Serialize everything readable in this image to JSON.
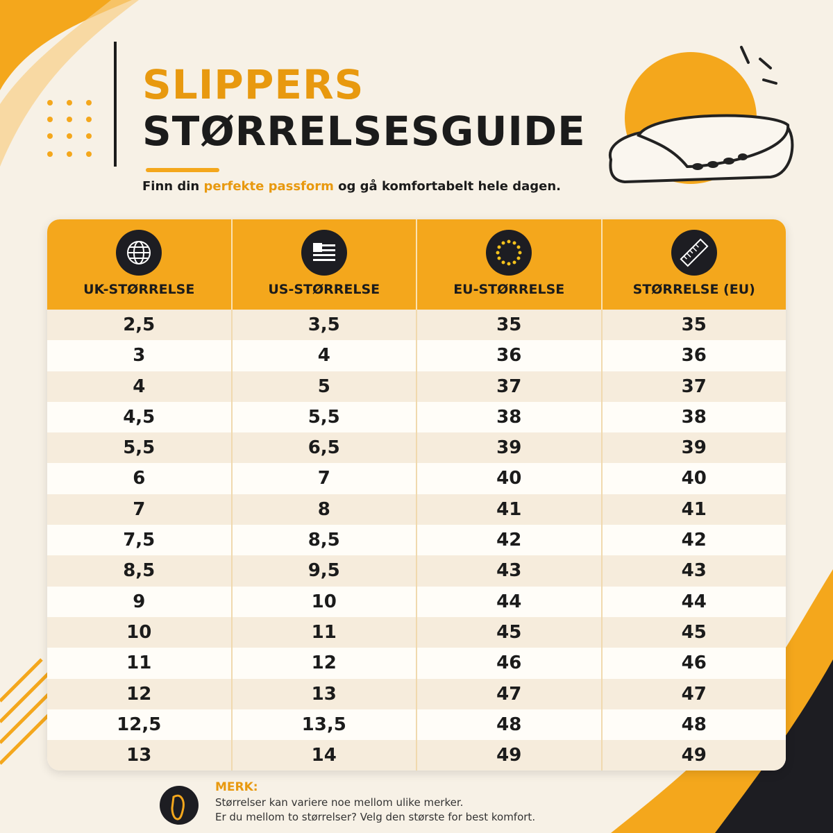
{
  "header": {
    "title_line1": "SLIPPERS",
    "title_line2": "STØRRELSESGUIDE",
    "subtitle_start": "Finn din",
    "subtitle_highlight": "perfekte passform",
    "subtitle_end": "og gå komfortabelt hele dagen."
  },
  "table": {
    "columns": [
      "UK-STØRRELSE",
      "US-STØRRELSE",
      "EU-STØRRELSE",
      "STØRRELSE (EU)"
    ],
    "rows": [
      [
        "2,5",
        "3,5",
        "35",
        "35"
      ],
      [
        "3",
        "4",
        "36",
        "36"
      ],
      [
        "4",
        "5",
        "37",
        "37"
      ],
      [
        "4,5",
        "5,5",
        "38",
        "38"
      ],
      [
        "5,5",
        "6,5",
        "39",
        "39"
      ],
      [
        "6",
        "7",
        "40",
        "40"
      ],
      [
        "7",
        "8",
        "41",
        "41"
      ],
      [
        "7,5",
        "8,5",
        "42",
        "42"
      ],
      [
        "8,5",
        "9,5",
        "43",
        "43"
      ],
      [
        "9",
        "10",
        "44",
        "44"
      ],
      [
        "10",
        "11",
        "45",
        "45"
      ],
      [
        "11",
        "12",
        "46",
        "46"
      ],
      [
        "12",
        "13",
        "47",
        "47"
      ],
      [
        "12,5",
        "13,5",
        "48",
        "48"
      ],
      [
        "13",
        "14",
        "49",
        "49"
      ]
    ]
  },
  "note": {
    "title": "MERK:",
    "lines": [
      "Størrelser kan variere noe mellom ulike merker.",
      "Er du mellom to størrelser? Velg den største for best komfort."
    ]
  }
}
